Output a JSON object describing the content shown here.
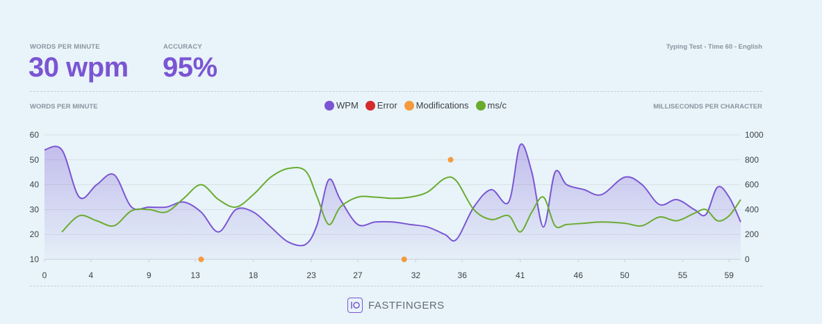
{
  "stats": {
    "wpm_label": "WORDS PER MINUTE",
    "wpm_value": "30 wpm",
    "accuracy_label": "ACCURACY",
    "accuracy_value": "95%",
    "test_info": "Typing Test - Time 60 - English"
  },
  "chart_data": {
    "type": "line",
    "left_axis_title": "WORDS PER MINUTE",
    "right_axis_title": "MILLISECONDS PER CHARACTER",
    "x_ticks": [
      0,
      4,
      9,
      13,
      18,
      23,
      27,
      32,
      36,
      41,
      46,
      50,
      55,
      59
    ],
    "xlim": [
      0,
      60
    ],
    "left_ticks": [
      10,
      20,
      30,
      40,
      50,
      60
    ],
    "left_ylim": [
      10,
      60
    ],
    "right_ticks": [
      0,
      200,
      400,
      600,
      800,
      1000
    ],
    "right_ylim": [
      0,
      1000
    ],
    "grid": true,
    "legend_position": "top-center",
    "series": [
      {
        "name": "WPM",
        "color": "#7b55d3",
        "axis": "left",
        "area": true,
        "x": [
          0,
          1.5,
          3,
          4.5,
          6,
          7.5,
          9,
          10.5,
          12,
          13.5,
          15,
          16.5,
          18,
          19.5,
          21,
          22.5,
          23.5,
          24.5,
          25.5,
          27,
          28.5,
          30,
          31.5,
          33,
          34.5,
          35.5,
          37,
          38.5,
          40,
          41,
          42,
          43,
          44,
          45,
          46.5,
          48,
          50,
          51.5,
          53,
          54.5,
          56,
          57,
          58,
          59,
          60
        ],
        "values": [
          54,
          54,
          35,
          40,
          44,
          31,
          31,
          31,
          33,
          29,
          21,
          30,
          29,
          23,
          17,
          16,
          24,
          42,
          34,
          24,
          25,
          25,
          24,
          23,
          20,
          18,
          31,
          38,
          33,
          56,
          45,
          23,
          45,
          40,
          38,
          36,
          43,
          40,
          32,
          34,
          30,
          28,
          39,
          35,
          25
        ]
      },
      {
        "name": "ms/c",
        "color": "#6aab2e",
        "axis": "right",
        "x": [
          1.5,
          3,
          4.5,
          6,
          7.5,
          9,
          10.5,
          12,
          13.5,
          15,
          16.5,
          18,
          19.5,
          21,
          22.5,
          23.5,
          24.5,
          25.5,
          27,
          28.5,
          30,
          31.5,
          33,
          34.5,
          35.5,
          37,
          38.5,
          40,
          41,
          42,
          43,
          44,
          45,
          46.5,
          48,
          50,
          51.5,
          53,
          54.5,
          56,
          57,
          58,
          59,
          60
        ],
        "values": [
          220,
          350,
          310,
          270,
          390,
          400,
          380,
          490,
          600,
          480,
          420,
          520,
          660,
          730,
          710,
          500,
          280,
          420,
          500,
          500,
          490,
          500,
          540,
          650,
          630,
          400,
          320,
          350,
          220,
          380,
          500,
          270,
          280,
          290,
          300,
          290,
          270,
          340,
          310,
          370,
          400,
          310,
          350,
          480
        ]
      },
      {
        "name": "Error",
        "color": "#d62b2b",
        "axis": "left",
        "type": "scatter",
        "x": [],
        "values": []
      },
      {
        "name": "Modifications",
        "color": "#f59a3c",
        "axis": "left",
        "type": "scatter",
        "x": [
          13.5,
          31,
          35
        ],
        "values": [
          10,
          10,
          50
        ]
      }
    ]
  },
  "footer": {
    "brand": "FASTFINGERS"
  }
}
